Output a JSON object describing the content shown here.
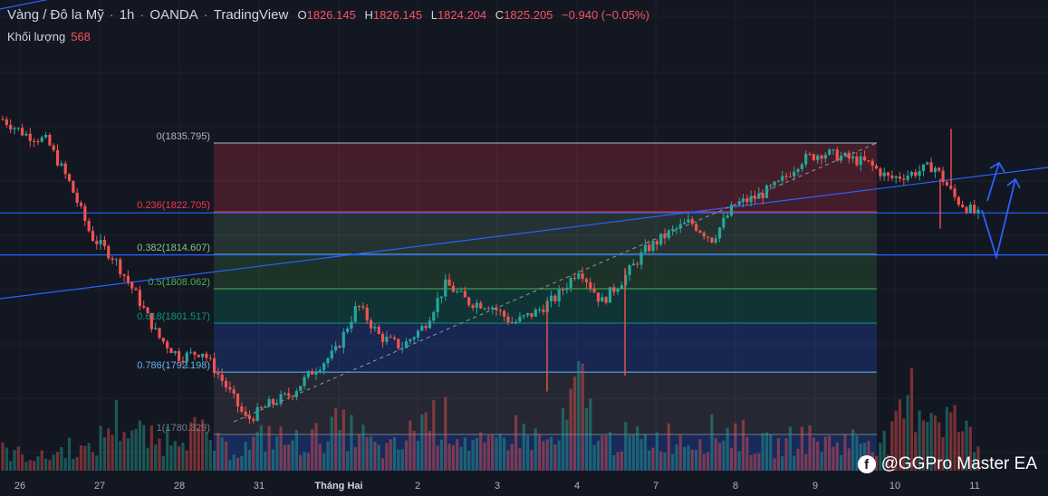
{
  "header": {
    "symbol": "Vàng / Đô la Mỹ",
    "interval": "1h",
    "exchange": "OANDA",
    "source": "TradingView",
    "o_label": "O",
    "o_value": "1826.145",
    "h_label": "H",
    "h_value": "1826.145",
    "l_label": "L",
    "l_value": "1824.204",
    "c_label": "C",
    "c_value": "1825.205",
    "change": "−0.940 (−0.05%)"
  },
  "volume": {
    "label": "Khối lượng",
    "value": "568"
  },
  "watermark": {
    "text": "@GGPro Master EA",
    "icon": "facebook-icon"
  },
  "colors": {
    "background": "#131722",
    "up": "#26a69a",
    "down": "#ef5350",
    "trendline": "#2962ff",
    "arrows": "#2962ff",
    "header_values": "#f7525f"
  },
  "chart_data": {
    "type": "candlestick",
    "symbol": "XAUUSD",
    "timeframe": "1h",
    "x_ticks": [
      "26",
      "27",
      "28",
      "31",
      "Tháng Hai",
      "2",
      "3",
      "4",
      "7",
      "8",
      "9",
      "10",
      "11"
    ],
    "fibonacci": [
      {
        "label": "0(1835.795)",
        "level": 0,
        "price": 1835.795,
        "color": "#b2b5be"
      },
      {
        "label": "0.236(1822.705)",
        "level": 0.236,
        "price": 1822.705,
        "color": "#f23645"
      },
      {
        "label": "0.382(1814.607)",
        "level": 0.382,
        "price": 1814.607,
        "color": "#81c784"
      },
      {
        "label": "0.5(1808.062)",
        "level": 0.5,
        "price": 1808.062,
        "color": "#4caf50"
      },
      {
        "label": "0.618(1801.517)",
        "level": 0.618,
        "price": 1801.517,
        "color": "#089981"
      },
      {
        "label": "0.786(1792.198)",
        "level": 0.786,
        "price": 1792.198,
        "color": "#64b5f6"
      },
      {
        "label": "1(1780.329)",
        "level": 1,
        "price": 1780.329,
        "color": "#787b86"
      }
    ],
    "horizontal_lines": [
      1822.5,
      1814.5
    ],
    "price_path": [
      1840.3,
      1837.5,
      1836.2,
      1828.3,
      1818.0,
      1814.0,
      1807.0,
      1799.0,
      1795.0,
      1796.2,
      1790.0,
      1783.0,
      1786.0,
      1788.0,
      1792.5,
      1796.0,
      1805.0,
      1799.0,
      1797.0,
      1801.0,
      1809.0,
      1805.5,
      1805.0,
      1801.5,
      1803.5,
      1806.5,
      1812.0,
      1805.5,
      1810.0,
      1815.5,
      1818.5,
      1820.8,
      1817.5,
      1824.0,
      1825.5,
      1828.0,
      1832.5,
      1834.0,
      1833.0,
      1832.0,
      1829.0,
      1830.0,
      1831.5,
      1825.0,
      1822.0
    ],
    "volumes": [
      120,
      95,
      80,
      150,
      110,
      320,
      240,
      160,
      280,
      210,
      130,
      140,
      220,
      170,
      190,
      260,
      230,
      120,
      150,
      330,
      300,
      180,
      140,
      250,
      200,
      160,
      520,
      170,
      200,
      180,
      210,
      190,
      230,
      240,
      160,
      150,
      210,
      170,
      180,
      200,
      170,
      450,
      380,
      300,
      150
    ]
  }
}
